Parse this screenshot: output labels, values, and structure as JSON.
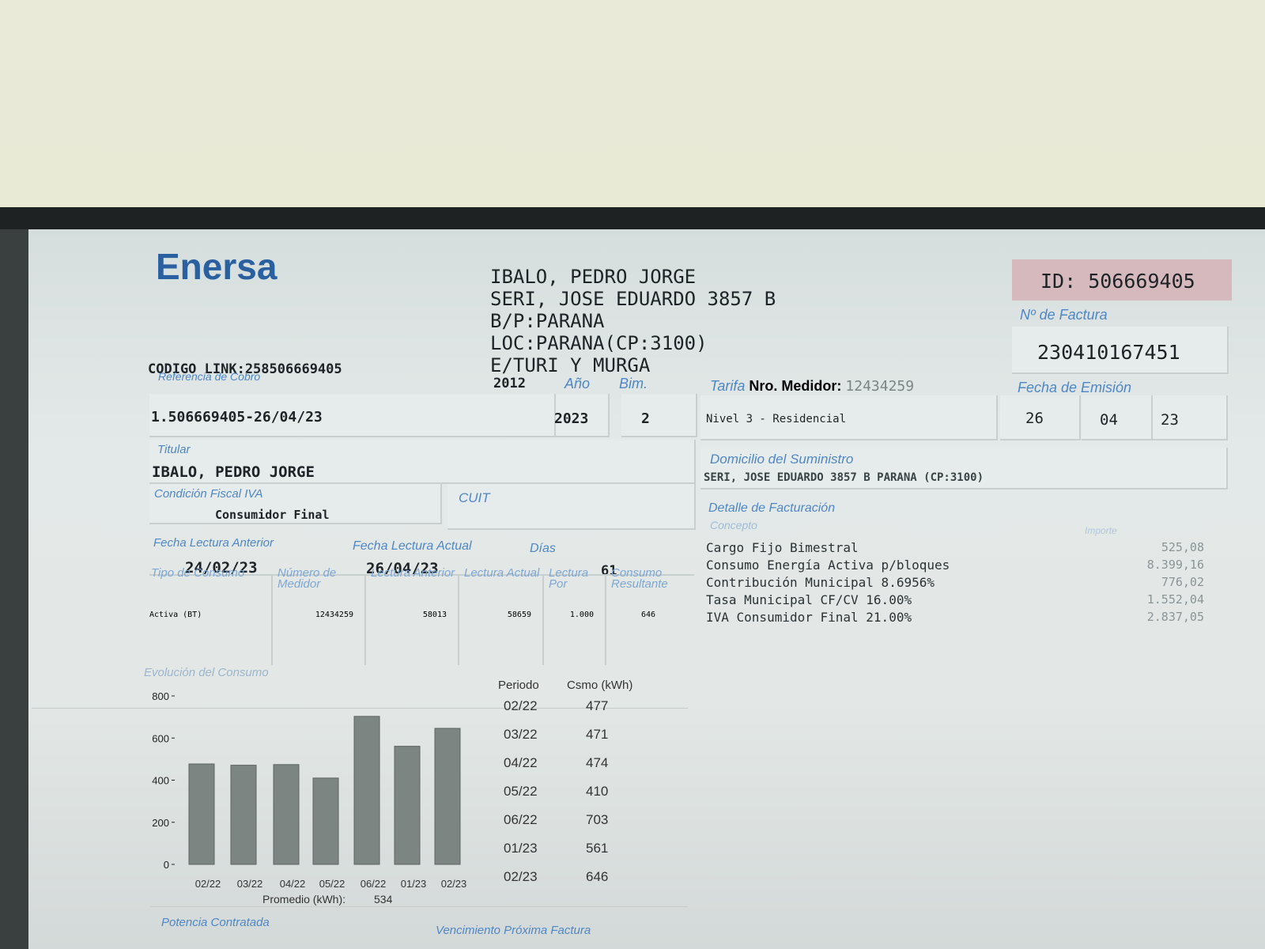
{
  "header": {
    "logo": "Enersa",
    "codigo_link": "CODIGO LINK:258506669405",
    "referencia_label": "Referencia de Cobro",
    "referencia": "1.506669405-26/04/23"
  },
  "customer": {
    "lines": [
      "IBALO, PEDRO JORGE",
      "SERI, JOSE EDUARDO 3857 B",
      "B/P:PARANA",
      "LOC:PARANA(CP:3100)",
      "E/TURI Y MURGA"
    ],
    "code": "2012"
  },
  "id": "ID: 506669405",
  "invoice": {
    "label": "Nº de Factura",
    "number": "230410167451"
  },
  "period": {
    "year_label": "Año",
    "year": "2023",
    "bim_label": "Bim.",
    "bim": "2"
  },
  "tariff": {
    "label": "Tarifa",
    "meter_label": "Nro. Medidor:",
    "meter": "12434259",
    "value": "Nivel 3 - Residencial"
  },
  "emission": {
    "label": "Fecha de Emisión",
    "day": "26",
    "month": "04",
    "year": "23"
  },
  "holder": {
    "label": "Titular",
    "name": "IBALO, PEDRO JORGE"
  },
  "supply": {
    "label": "Domicilio del Suministro",
    "address": "SERI, JOSE EDUARDO 3857 B PARANA (CP:3100)"
  },
  "tax": {
    "label": "Condición Fiscal IVA",
    "value": "Consumidor Final",
    "cuit_label": "CUIT"
  },
  "readings": {
    "prev_label": "Fecha Lectura Anterior",
    "prev": "24/02/23",
    "curr_label": "Fecha Lectura Actual",
    "curr": "26/04/23",
    "days_label": "Días",
    "days": "61"
  },
  "meter_table": {
    "headers": [
      "Tipo de Consumo",
      "Número de Medidor",
      "Lectura Anterior",
      "Lectura Actual",
      "Lectura Por",
      "Consumo Resultante"
    ],
    "rows": [
      [
        "Activa (BT)",
        "12434259",
        "58013",
        "58659",
        "1.000",
        "646"
      ]
    ]
  },
  "billing": {
    "label": "Detalle de Facturación",
    "concept_label": "Concepto",
    "amount_label": "Importe",
    "rows": [
      [
        "Cargo Fijo Bimestral",
        "525,08"
      ],
      [
        "Consumo Energía Activa p/bloques",
        "8.399,16"
      ],
      [
        "Contribución Municipal 8.6956%",
        "776,02"
      ],
      [
        "Tasa Municipal CF/CV 16.00%",
        "1.552,04"
      ],
      [
        "IVA Consumidor Final 21.00%",
        "2.837,05"
      ]
    ]
  },
  "consumption": {
    "title": "Evolución del Consumo",
    "type": "bar",
    "period_label": "Periodo",
    "value_label": "Csmo (kWh)",
    "categories": [
      "02/22",
      "03/22",
      "04/22",
      "05/22",
      "06/22",
      "01/23",
      "02/23"
    ],
    "values": [
      477,
      471,
      474,
      410,
      703,
      561,
      646
    ],
    "color": "#7d8583",
    "ylim": [
      0,
      800
    ],
    "yticks": [
      0,
      200,
      400,
      600,
      800
    ],
    "average_label": "Promedio (kWh):",
    "average": 534
  },
  "footer": {
    "power_label": "Potencia Contratada",
    "due_label": "Vencimiento Próxima Factura"
  }
}
